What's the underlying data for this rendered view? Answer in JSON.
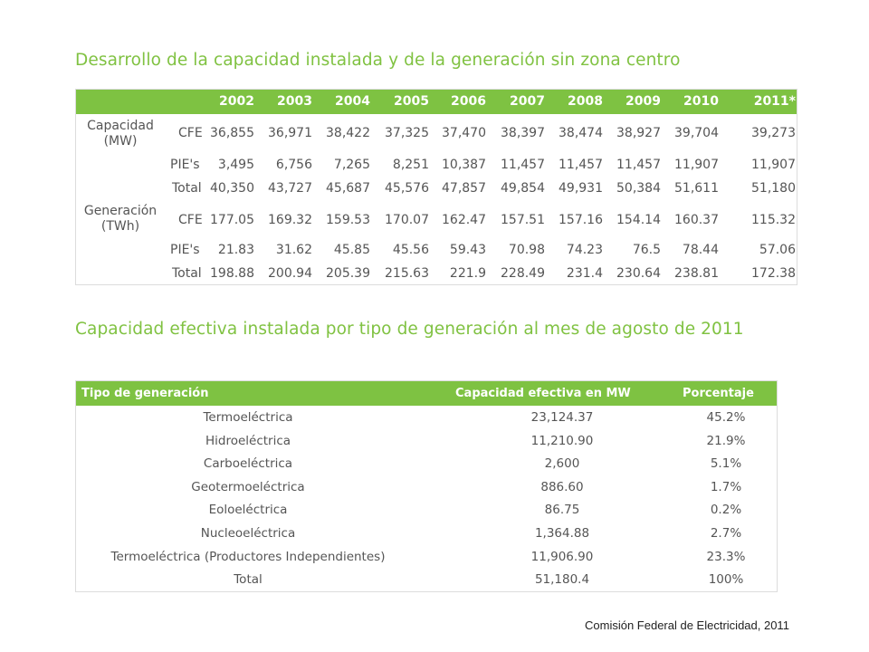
{
  "title1": "Desarrollo de la capacidad instalada y de la generación sin zona centro",
  "title2": "Capacidad efectiva instalada por tipo de generación al mes de agosto de 2011",
  "source": "Comisión Federal de Electricidad, 2011",
  "colors": {
    "accent": "#7ec242",
    "title": "#80c242",
    "text": "#555555"
  },
  "table1": {
    "years": [
      "2002",
      "2003",
      "2004",
      "2005",
      "2006",
      "2007",
      "2008",
      "2009",
      "2010",
      "2011*"
    ],
    "groups": [
      {
        "label1": "Capacidad",
        "label2": "(MW)"
      },
      {
        "label1": "Generación",
        "label2": "(TWh)"
      }
    ],
    "rows": [
      {
        "label": "CFE",
        "values": [
          "36,855",
          "36,971",
          "38,422",
          "37,325",
          "37,470",
          "38,397",
          "38,474",
          "38,927",
          "39,704",
          "39,273"
        ]
      },
      {
        "label": "PIE's",
        "values": [
          "3,495",
          "6,756",
          "7,265",
          "8,251",
          "10,387",
          "11,457",
          "11,457",
          "11,457",
          "11,907",
          "11,907"
        ]
      },
      {
        "label": "Total",
        "values": [
          "40,350",
          "43,727",
          "45,687",
          "45,576",
          "47,857",
          "49,854",
          "49,931",
          "50,384",
          "51,611",
          "51,180"
        ]
      },
      {
        "label": "CFE",
        "values": [
          "177.05",
          "169.32",
          "159.53",
          "170.07",
          "162.47",
          "157.51",
          "157.16",
          "154.14",
          "160.37",
          "115.32"
        ]
      },
      {
        "label": "PIE's",
        "values": [
          "21.83",
          "31.62",
          "45.85",
          "45.56",
          "59.43",
          "70.98",
          "74.23",
          "76.5",
          "78.44",
          "57.06"
        ]
      },
      {
        "label": "Total",
        "values": [
          "198.88",
          "200.94",
          "205.39",
          "215.63",
          "221.9",
          "228.49",
          "231.4",
          "230.64",
          "238.81",
          "172.38"
        ]
      }
    ]
  },
  "table2": {
    "headers": {
      "tipo": "Tipo de generación",
      "capacidad": "Capacidad efectiva en MW",
      "porcentaje": "Porcentaje"
    },
    "rows": [
      {
        "tipo": "Termoeléctrica",
        "capacidad": "23,124.37",
        "porcentaje": "45.2%"
      },
      {
        "tipo": "Hidroeléctrica",
        "capacidad": "11,210.90",
        "porcentaje": "21.9%"
      },
      {
        "tipo": "Carboeléctrica",
        "capacidad": "2,600",
        "porcentaje": "5.1%"
      },
      {
        "tipo": "Geotermoeléctrica",
        "capacidad": "886.60",
        "porcentaje": "1.7%"
      },
      {
        "tipo": "Eoloeléctrica",
        "capacidad": "86.75",
        "porcentaje": "0.2%"
      },
      {
        "tipo": "Nucleoeléctrica",
        "capacidad": "1,364.88",
        "porcentaje": "2.7%"
      },
      {
        "tipo": "Termoeléctrica (Productores Independientes)",
        "capacidad": "11,906.90",
        "porcentaje": "23.3%"
      },
      {
        "tipo": "Total",
        "capacidad": "51,180.4",
        "porcentaje": "100%"
      }
    ]
  }
}
